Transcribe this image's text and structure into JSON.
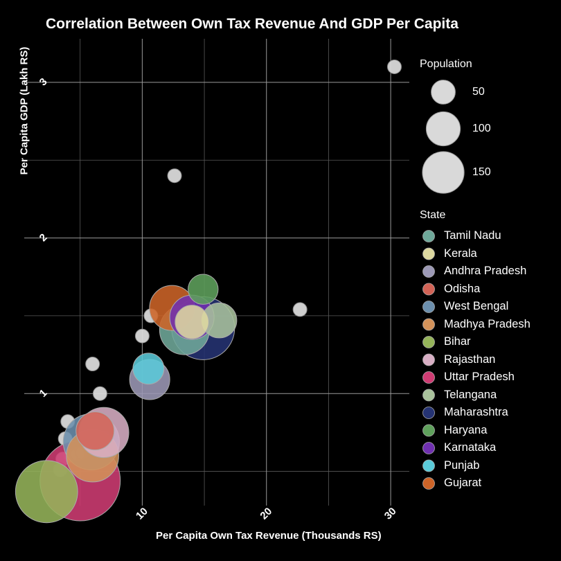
{
  "chart_data": {
    "type": "scatter",
    "title": "Correlation Between Own Tax Revenue And GDP Per Capita",
    "xlabel": "Per Capita Own Tax Revenue (Thousands RS)",
    "ylabel": "Per Capita GDP (Lakh RS)",
    "xlim": [
      0.5,
      31.5
    ],
    "ylim": [
      0.28,
      3.28
    ],
    "x_ticks": [
      10,
      20,
      30
    ],
    "y_ticks": [
      1,
      2,
      3
    ],
    "x_minor": [
      5,
      15,
      25
    ],
    "y_minor": [
      0.5,
      1.5,
      2.5
    ],
    "size_legend": {
      "title": "Population",
      "entries": [
        {
          "label": "50",
          "value": 50
        },
        {
          "label": "100",
          "value": 100
        },
        {
          "label": "150",
          "value": 150
        }
      ]
    },
    "color_legend_title": "State",
    "states": [
      {
        "name": "Tamil Nadu",
        "color": "#6fa89a",
        "x": 13.4,
        "y": 1.41,
        "pop": 77
      },
      {
        "name": "Kerala",
        "color": "#ddd8a0",
        "x": 14.0,
        "y": 1.46,
        "pop": 35
      },
      {
        "name": "Andhra Pradesh",
        "color": "#9c99b6",
        "x": 10.6,
        "y": 1.09,
        "pop": 50
      },
      {
        "name": "Odisha",
        "color": "#d26356",
        "x": 6.2,
        "y": 0.76,
        "pop": 45
      },
      {
        "name": "West Bengal",
        "color": "#6c8fad",
        "x": 5.9,
        "y": 0.69,
        "pop": 98
      },
      {
        "name": "Madhya Pradesh",
        "color": "#d3925a",
        "x": 6.0,
        "y": 0.6,
        "pop": 85
      },
      {
        "name": "Bihar",
        "color": "#95b45a",
        "x": 2.3,
        "y": 0.37,
        "pop": 120
      },
      {
        "name": "Rajasthan",
        "color": "#d8aec4",
        "x": 6.9,
        "y": 0.75,
        "pop": 78
      },
      {
        "name": "Uttar Pradesh",
        "color": "#cf3c73",
        "x": 5.0,
        "y": 0.44,
        "pop": 200
      },
      {
        "name": "Telangana",
        "color": "#a9c29c",
        "x": 16.2,
        "y": 1.47,
        "pop": 38
      },
      {
        "name": "Maharashtra",
        "color": "#253373",
        "x": 14.9,
        "y": 1.42,
        "pop": 123
      },
      {
        "name": "Haryana",
        "color": "#5fa15c",
        "x": 14.9,
        "y": 1.67,
        "pop": 28
      },
      {
        "name": "Karnataka",
        "color": "#7030b0",
        "x": 14.0,
        "y": 1.49,
        "pop": 61
      },
      {
        "name": "Punjab",
        "color": "#5acad8",
        "x": 10.5,
        "y": 1.16,
        "pop": 30
      },
      {
        "name": "Gujarat",
        "color": "#cd6428",
        "x": 12.4,
        "y": 1.55,
        "pop": 63
      }
    ],
    "other_points": [
      {
        "x": 30.3,
        "y": 3.1
      },
      {
        "x": 12.6,
        "y": 2.4
      },
      {
        "x": 22.7,
        "y": 1.54
      },
      {
        "x": 10.7,
        "y": 1.5
      },
      {
        "x": 10.0,
        "y": 1.37
      },
      {
        "x": 6.0,
        "y": 1.19
      },
      {
        "x": 6.6,
        "y": 1.0
      },
      {
        "x": 4.0,
        "y": 0.82
      },
      {
        "x": 3.8,
        "y": 0.71
      },
      {
        "x": 7.0,
        "y": 0.71
      },
      {
        "x": 4.2,
        "y": 0.6
      },
      {
        "x": 3.6,
        "y": 0.58
      },
      {
        "x": 4.8,
        "y": 0.61
      },
      {
        "x": 5.2,
        "y": 0.62
      },
      {
        "x": 3.4,
        "y": 0.51
      }
    ]
  }
}
